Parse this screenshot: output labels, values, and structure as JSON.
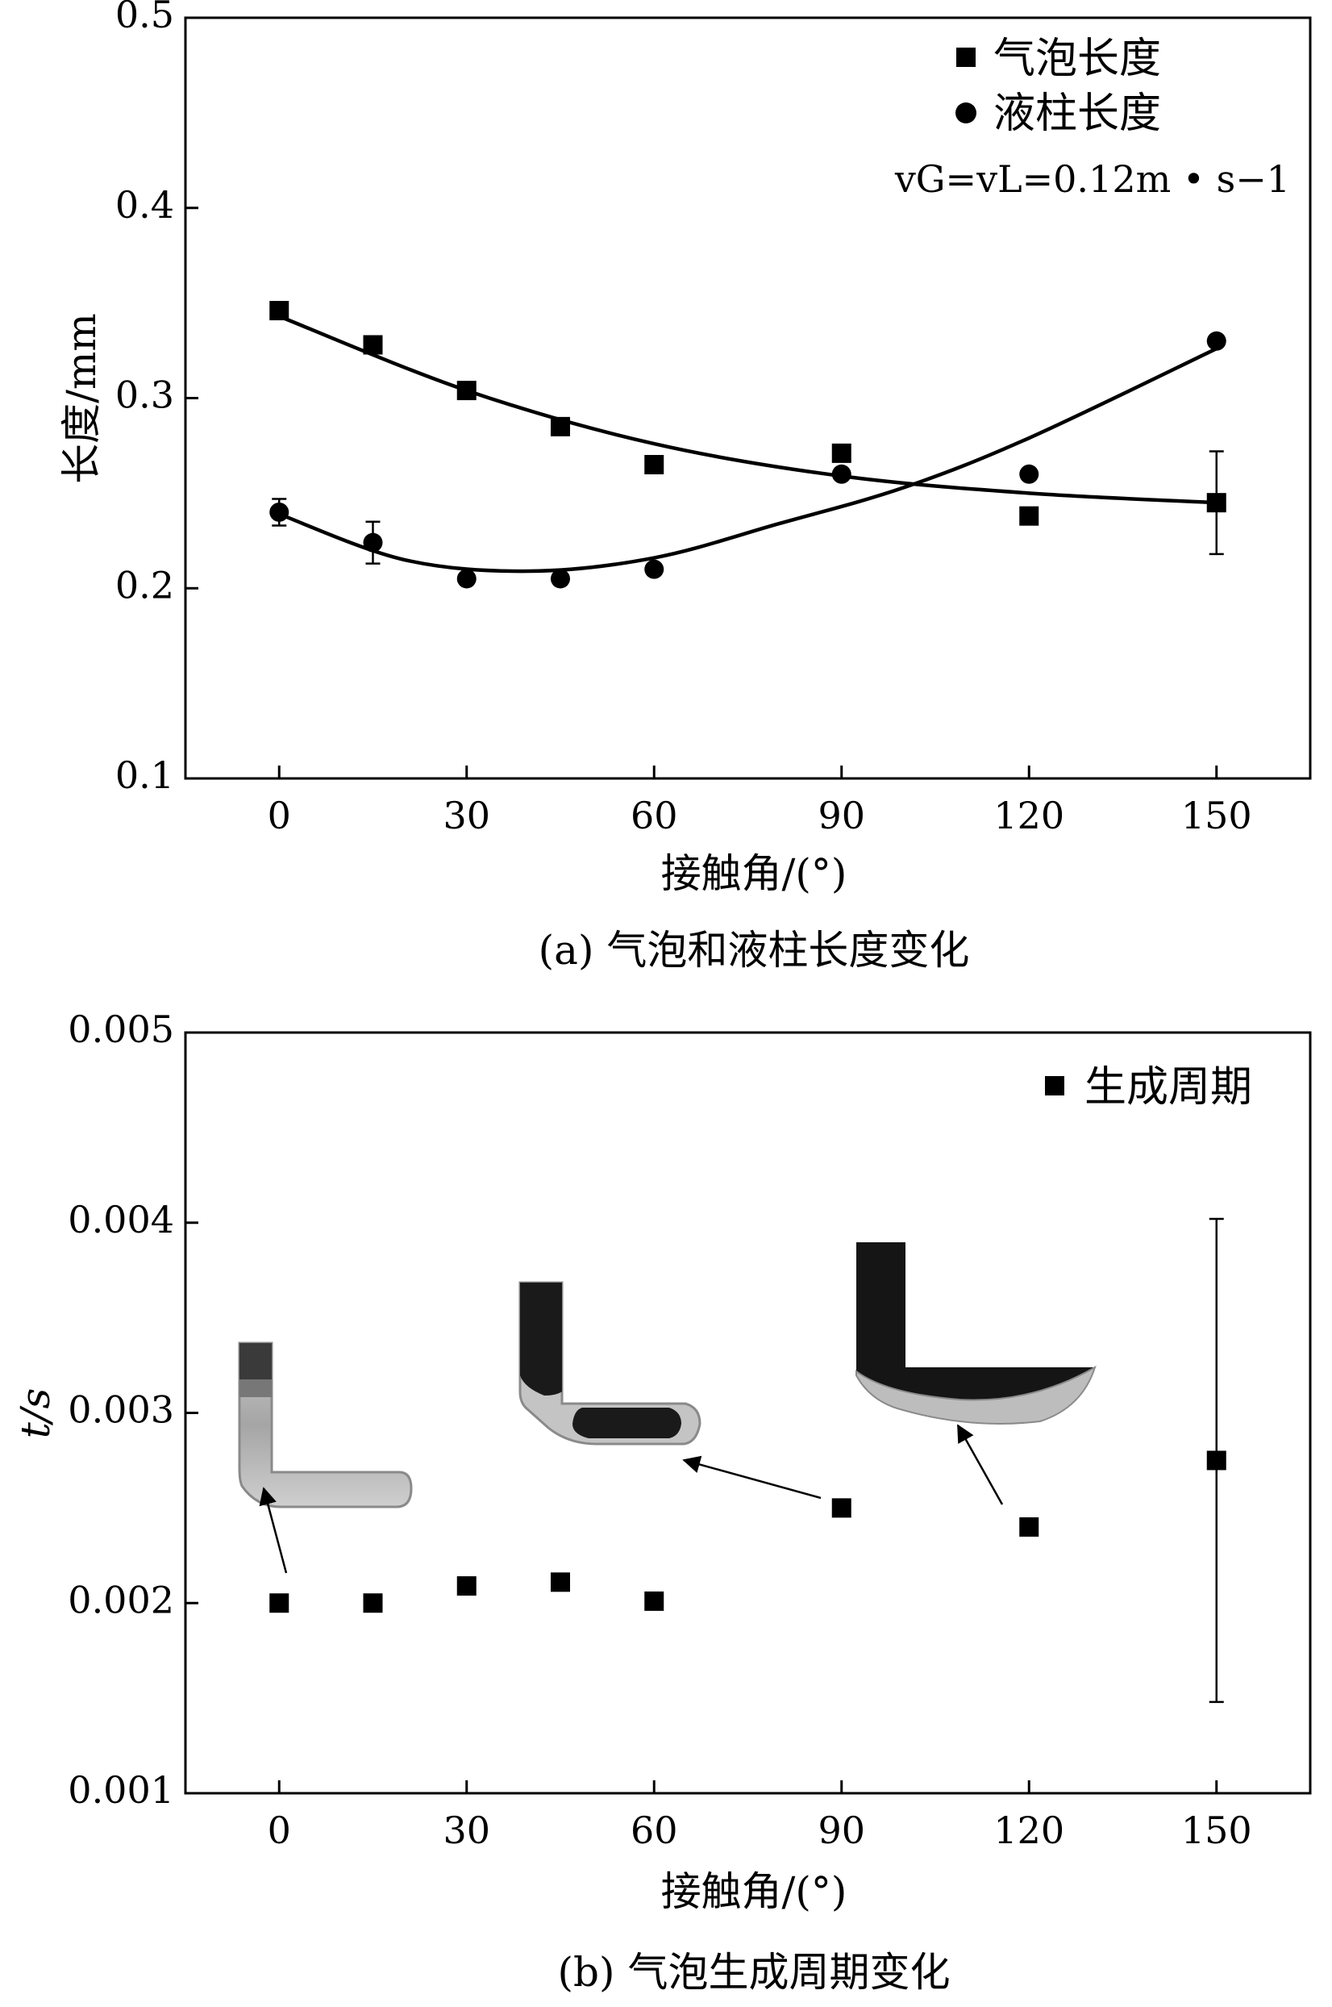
{
  "chart_data": [
    {
      "type": "scatter",
      "caption": "(a) 气泡和液柱长度变化",
      "xlabel": "接触角/(°)",
      "ylabel": "长度/mm",
      "xlim": [
        -15,
        165
      ],
      "ylim": [
        0.1,
        0.5
      ],
      "xticks": [
        0,
        30,
        60,
        90,
        120,
        150
      ],
      "xtick_labels": [
        "0",
        "30",
        "60",
        "90",
        "120",
        "150"
      ],
      "yticks": [
        0.1,
        0.2,
        0.3,
        0.4,
        0.5
      ],
      "ytick_labels": [
        "0.1",
        "0.2",
        "0.3",
        "0.4",
        "0.5"
      ],
      "grid": false,
      "legend_position": "top-right",
      "annotation": "vG=vL=0.12m • s−1",
      "series": [
        {
          "name": "气泡长度",
          "marker": "square",
          "x": [
            0,
            15,
            30,
            45,
            60,
            90,
            120,
            150
          ],
          "y": [
            0.346,
            0.328,
            0.304,
            0.285,
            0.265,
            0.271,
            0.238,
            0.245
          ],
          "error": [
            null,
            null,
            null,
            null,
            null,
            null,
            null,
            0.027
          ],
          "fit": {
            "x": [
              0,
              30,
              60,
              90,
              120,
              150
            ],
            "y": [
              0.343,
              0.304,
              0.276,
              0.259,
              0.25,
              0.245
            ]
          }
        },
        {
          "name": "液柱长度",
          "marker": "circle",
          "x": [
            0,
            15,
            30,
            45,
            60,
            90,
            120,
            150
          ],
          "y": [
            0.24,
            0.224,
            0.205,
            0.205,
            0.21,
            0.26,
            0.26,
            0.33
          ],
          "error": [
            0.007,
            0.011,
            null,
            null,
            null,
            null,
            null,
            null
          ],
          "fit": {
            "x": [
              0,
              20,
              40,
              60,
              80,
              100,
              120,
              150
            ],
            "y": [
              0.239,
              0.215,
              0.209,
              0.216,
              0.234,
              0.253,
              0.279,
              0.326
            ]
          }
        }
      ]
    },
    {
      "type": "scatter",
      "caption": "(b) 气泡生成周期变化",
      "xlabel": "接触角/(°)",
      "ylabel": "t/s",
      "xlim": [
        -15,
        165
      ],
      "ylim": [
        0.001,
        0.005
      ],
      "xticks": [
        0,
        30,
        60,
        90,
        120,
        150
      ],
      "xtick_labels": [
        "0",
        "30",
        "60",
        "90",
        "120",
        "150"
      ],
      "yticks": [
        0.001,
        0.002,
        0.003,
        0.004,
        0.005
      ],
      "ytick_labels": [
        "0.001",
        "0.002",
        "0.003",
        "0.004",
        "0.005"
      ],
      "grid": false,
      "legend_position": "top-right",
      "series": [
        {
          "name": "生成周期",
          "marker": "square",
          "x": [
            0,
            15,
            30,
            45,
            60,
            90,
            120,
            150
          ],
          "y": [
            0.002,
            0.002,
            0.00209,
            0.00211,
            0.00201,
            0.0025,
            0.0024,
            0.00275
          ],
          "error": [
            null,
            null,
            null,
            null,
            null,
            null,
            null,
            0.00127
          ]
        }
      ],
      "insets": [
        "bubble-shape-thumbnail-at-0-degrees",
        "bubble-shape-thumbnail-at-90-degrees",
        "bubble-shape-thumbnail-at-120-degrees"
      ]
    }
  ]
}
